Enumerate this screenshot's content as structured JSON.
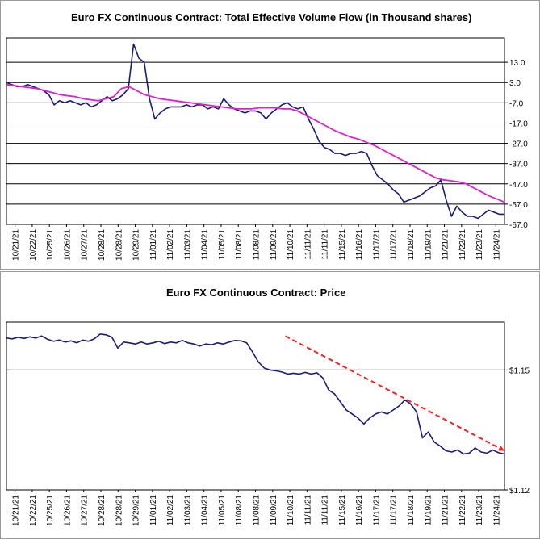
{
  "chart_data": [
    {
      "type": "line",
      "title": "Euro FX Continuous Contract: Total Effective Volume Flow (in Thousand shares)",
      "x_tick_labels": [
        "10/21/21",
        "10/22/21",
        "10/25/21",
        "10/26/21",
        "10/27/21",
        "10/28/21",
        "10/28/21",
        "10/29/21",
        "11/01/21",
        "11/02/21",
        "11/03/21",
        "11/04/21",
        "11/05/21",
        "11/08/21",
        "11/08/21",
        "11/09/21",
        "11/10/21",
        "11/11/21",
        "11/11/21",
        "11/15/21",
        "11/16/21",
        "11/17/21",
        "11/17/21",
        "11/18/21",
        "11/19/21",
        "11/21/21",
        "11/22/21",
        "11/23/21",
        "11/24/21"
      ],
      "y_ticks": [
        13.0,
        3.0,
        -7.0,
        -17.0,
        -27.0,
        -37.0,
        -47.0,
        -57.0,
        -67.0
      ],
      "y_tick_labels": [
        "13.0",
        "3.0",
        "-7.0",
        "-17.0",
        "-27.0",
        "-37.0",
        "-47.0",
        "-57.0",
        "-67.0"
      ],
      "ylim": [
        -67,
        25
      ],
      "y_axis_side": "right",
      "grid": "horizontal",
      "series": [
        {
          "color": "#1a1a7e",
          "values": [
            3,
            2,
            1,
            1,
            2,
            1,
            0,
            -1,
            -3,
            -8,
            -6,
            -7,
            -6,
            -7,
            -8,
            -7,
            -9,
            -8,
            -6,
            -4,
            -6,
            -5,
            -3,
            0,
            22,
            15,
            13,
            -5,
            -15,
            -12,
            -10,
            -9,
            -9,
            -9,
            -8,
            -9,
            -8,
            -8,
            -10,
            -9,
            -10,
            -5,
            -8,
            -10,
            -11,
            -12,
            -11,
            -11,
            -12,
            -15,
            -12,
            -10,
            -8,
            -7,
            -9,
            -10,
            -9,
            -15,
            -20,
            -26,
            -29,
            -30,
            -32,
            -32,
            -33,
            -32,
            -32,
            -31,
            -32,
            -38,
            -43,
            -45,
            -47,
            -50,
            -52,
            -56,
            -55,
            -54,
            -53,
            -51,
            -49,
            -48,
            -45,
            -55,
            -63,
            -58,
            -61,
            -63,
            -63,
            -64,
            -62,
            -60,
            -61,
            -62,
            -62
          ]
        },
        {
          "color": "#e020d0",
          "values": [
            2,
            1.5,
            1,
            0.5,
            0,
            -1,
            -2,
            -3,
            -3.5,
            -4,
            -5,
            -5.5,
            -6,
            -5,
            -4,
            0,
            1,
            -1,
            -3,
            -4,
            -5,
            -5.5,
            -6,
            -6.5,
            -7,
            -7.5,
            -8,
            -8.5,
            -9,
            -9.5,
            -10,
            -10,
            -10,
            -9.5,
            -9.5,
            -9.5,
            -10,
            -10,
            -11,
            -13,
            -15,
            -17,
            -19,
            -21,
            -22.5,
            -24,
            -25,
            -26.5,
            -28,
            -30,
            -32,
            -34,
            -36,
            -38,
            -40,
            -42,
            -44,
            -45,
            -45.5,
            -46,
            -47,
            -49,
            -51,
            -53,
            -54.5,
            -56
          ]
        }
      ]
    },
    {
      "type": "line",
      "title": "Euro FX Continuous Contract: Price",
      "x_tick_labels": [
        "10/21/21",
        "10/22/21",
        "10/25/21",
        "10/26/21",
        "10/27/21",
        "10/28/21",
        "10/28/21",
        "10/29/21",
        "11/01/21",
        "11/02/21",
        "11/03/21",
        "11/04/21",
        "11/05/21",
        "11/08/21",
        "11/08/21",
        "11/09/21",
        "11/10/21",
        "11/11/21",
        "11/11/21",
        "11/15/21",
        "11/16/21",
        "11/17/21",
        "11/17/21",
        "11/18/21",
        "11/19/21",
        "11/21/21",
        "11/22/21",
        "11/23/21",
        "11/24/21"
      ],
      "y_ticks": [
        1.15,
        1.12
      ],
      "y_tick_labels": [
        "$1.15",
        "$1.12"
      ],
      "ylim": [
        1.12,
        1.162
      ],
      "y_axis_side": "right",
      "grid": "horizontal",
      "series": [
        {
          "color": "#1a1a7e",
          "values": [
            1.158,
            1.1578,
            1.1582,
            1.1579,
            1.1583,
            1.158,
            1.1585,
            1.1577,
            1.1572,
            1.1575,
            1.157,
            1.1573,
            1.1568,
            1.1575,
            1.1572,
            1.1578,
            1.159,
            1.1588,
            1.1582,
            1.1555,
            1.157,
            1.1568,
            1.1565,
            1.157,
            1.1565,
            1.1568,
            1.1572,
            1.1566,
            1.157,
            1.1568,
            1.1574,
            1.1568,
            1.1565,
            1.156,
            1.1565,
            1.1563,
            1.1568,
            1.1565,
            1.157,
            1.1574,
            1.1573,
            1.1568,
            1.1545,
            1.152,
            1.1505,
            1.15,
            1.1498,
            1.1495,
            1.149,
            1.1492,
            1.149,
            1.1494,
            1.149,
            1.1493,
            1.148,
            1.145,
            1.144,
            1.142,
            1.14,
            1.139,
            1.138,
            1.1365,
            1.138,
            1.139,
            1.1395,
            1.139,
            1.14,
            1.141,
            1.1425,
            1.1415,
            1.1395,
            1.133,
            1.1345,
            1.132,
            1.131,
            1.1298,
            1.1295,
            1.13,
            1.129,
            1.1292,
            1.1305,
            1.1295,
            1.1292,
            1.13,
            1.1293,
            1.129
          ]
        }
      ],
      "trendline": {
        "color": "#ff2020",
        "style": "dashed",
        "x_start": 0.56,
        "y_start": 1.1585,
        "x_end": 1.0,
        "y_end": 1.1298
      }
    }
  ]
}
